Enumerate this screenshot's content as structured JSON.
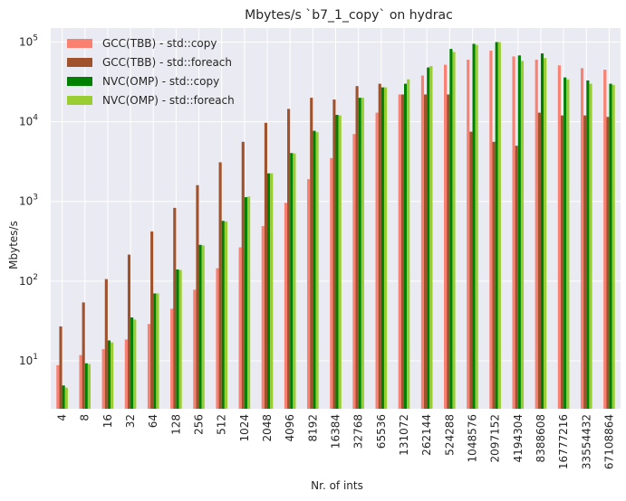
{
  "chart_data": {
    "type": "bar",
    "title": "Mbytes/s `b7_1_copy` on hydrac",
    "xlabel": "Nr. of ints",
    "ylabel": "Mbytes/s",
    "yscale": "log",
    "ylim": [
      2.5,
      150000
    ],
    "yticks": [
      {
        "value": 10,
        "base": "10",
        "exp": "1"
      },
      {
        "value": 100,
        "base": "10",
        "exp": "2"
      },
      {
        "value": 1000,
        "base": "10",
        "exp": "3"
      },
      {
        "value": 10000,
        "base": "10",
        "exp": "4"
      },
      {
        "value": 100000,
        "base": "10",
        "exp": "5"
      }
    ],
    "grid": true,
    "legend_position": "top-left",
    "categories": [
      "4",
      "8",
      "16",
      "32",
      "64",
      "128",
      "256",
      "512",
      "1024",
      "2048",
      "4096",
      "8192",
      "16384",
      "32768",
      "65536",
      "131072",
      "262144",
      "524288",
      "1048576",
      "2097152",
      "4194304",
      "8388608",
      "16777216",
      "33554432",
      "67108864"
    ],
    "series": [
      {
        "name": "GCC(TBB) - std::copy",
        "color": "#fa8072",
        "values": [
          8.8,
          11.8,
          14,
          18.5,
          29,
          45,
          78,
          145,
          265,
          490,
          960,
          1900,
          3500,
          7000,
          13000,
          22000,
          38000,
          52000,
          60000,
          78000,
          66000,
          60000,
          51000,
          47000,
          45000
        ]
      },
      {
        "name": "GCC(TBB) - std::foreach",
        "color": "#a0522d",
        "values": [
          27,
          54,
          106,
          215,
          420,
          830,
          1600,
          3100,
          5600,
          9700,
          14500,
          20000,
          19000,
          28000,
          30000,
          22000,
          22000,
          22000,
          7500,
          5600,
          5000,
          13000,
          12000,
          12000,
          11500
        ]
      },
      {
        "name": "NVC(OMP) - std::copy",
        "color": "#008000",
        "values": [
          4.9,
          9.3,
          18,
          35,
          70,
          140,
          285,
          570,
          1130,
          2250,
          4050,
          7700,
          12200,
          20000,
          27000,
          30000,
          48000,
          82000,
          95000,
          100000,
          68000,
          72000,
          36000,
          33000,
          30000
        ]
      },
      {
        "name": "NVC(OMP) - std::foreach",
        "color": "#9acd32",
        "values": [
          4.6,
          9.1,
          17,
          33,
          70,
          138,
          280,
          560,
          1150,
          2250,
          4000,
          7400,
          12000,
          20000,
          27000,
          34000,
          50000,
          75000,
          92000,
          100000,
          58000,
          63000,
          34000,
          30000,
          29000
        ]
      }
    ]
  }
}
